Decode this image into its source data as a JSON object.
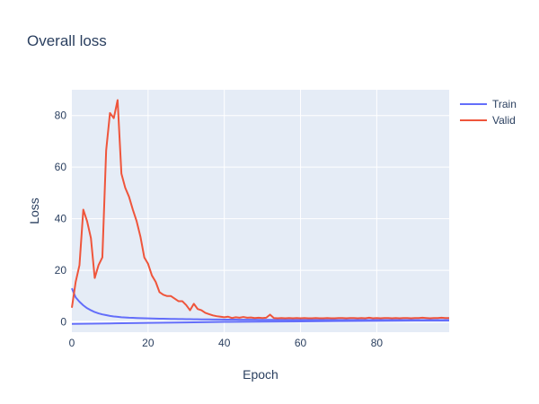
{
  "chart_data": {
    "type": "line",
    "title": "Overall loss",
    "xlabel": "Epoch",
    "ylabel": "Loss",
    "xlim": [
      0,
      99
    ],
    "ylim": [
      -4,
      90
    ],
    "x_ticks": [
      0,
      20,
      40,
      60,
      80
    ],
    "y_ticks": [
      0,
      20,
      40,
      60,
      80
    ],
    "grid": true,
    "legend_position": "top-right",
    "series": [
      {
        "name": "Train",
        "color": "#636efa",
        "x": [
          0,
          1,
          2,
          3,
          4,
          5,
          6,
          7,
          8,
          9,
          10,
          11,
          12,
          13,
          14,
          15,
          16,
          17,
          18,
          19,
          20,
          21,
          22,
          23,
          24,
          25,
          26,
          27,
          28,
          29,
          30,
          31,
          32,
          33,
          34,
          35,
          36,
          37,
          38,
          39,
          40,
          41,
          42,
          43,
          44,
          45,
          46,
          47,
          48,
          49,
          50,
          51,
          52,
          53,
          54,
          55,
          56,
          57,
          58,
          59,
          60,
          61,
          62,
          63,
          64,
          65,
          66,
          67,
          68,
          69,
          70,
          71,
          72,
          73,
          74,
          75,
          76,
          77,
          78,
          79,
          80,
          81,
          82,
          83,
          84,
          85,
          86,
          87,
          88,
          89,
          90,
          91,
          92,
          93,
          94,
          95,
          96,
          97,
          98,
          99
        ],
        "values": [
          13.0,
          9.5,
          7.8,
          6.4,
          5.3,
          4.5,
          3.8,
          3.3,
          2.9,
          2.6,
          2.3,
          2.1,
          1.95,
          1.8,
          1.7,
          1.6,
          1.55,
          1.5,
          1.45,
          1.4,
          1.35,
          1.3,
          1.27,
          1.24,
          1.2,
          1.17,
          1.15,
          1.12,
          1.1,
          1.08,
          1.05,
          1.03,
          1.01,
          1.0,
          0.98,
          0.96,
          0.95,
          0.93,
          0.92,
          0.9,
          0.89,
          0.88,
          0.87,
          0.86,
          0.85,
          0.84,
          0.83,
          0.82,
          0.81,
          0.8,
          0.8,
          0.79,
          0.79,
          0.78,
          0.78,
          0.77,
          0.77,
          0.76,
          0.76,
          0.75,
          0.75,
          0.75,
          0.74,
          0.74,
          0.74,
          0.73,
          0.73,
          0.73,
          0.72,
          0.72,
          0.72,
          0.72,
          0.71,
          0.71,
          0.71,
          0.71,
          0.7,
          0.7,
          0.7,
          0.7,
          0.7,
          0.7,
          0.69,
          0.69,
          0.69,
          0.69,
          0.69,
          0.69,
          0.69,
          0.68,
          0.68,
          0.68,
          0.68,
          0.68,
          0.68,
          0.68,
          0.68,
          0.68,
          0.68,
          0.68
        ]
      },
      {
        "name": "Train",
        "color": "#636efa",
        "x": [
          0,
          10,
          20,
          30,
          40,
          50,
          60,
          70,
          80,
          90,
          99
        ],
        "values": [
          -0.8,
          -0.6,
          -0.4,
          -0.2,
          0.0,
          0.1,
          0.2,
          0.3,
          0.4,
          0.5,
          0.5
        ]
      },
      {
        "name": "Valid",
        "color": "#ef553b",
        "x": [
          0,
          1,
          2,
          3,
          4,
          5,
          6,
          7,
          8,
          9,
          10,
          11,
          12,
          13,
          14,
          15,
          16,
          17,
          18,
          19,
          20,
          21,
          22,
          23,
          24,
          25,
          26,
          27,
          28,
          29,
          30,
          31,
          32,
          33,
          34,
          35,
          36,
          37,
          38,
          39,
          40,
          41,
          42,
          43,
          44,
          45,
          46,
          47,
          48,
          49,
          50,
          51,
          52,
          53,
          54,
          55,
          56,
          57,
          58,
          59,
          60,
          61,
          62,
          63,
          64,
          65,
          66,
          67,
          68,
          69,
          70,
          71,
          72,
          73,
          74,
          75,
          76,
          77,
          78,
          79,
          80,
          81,
          82,
          83,
          84,
          85,
          86,
          87,
          88,
          89,
          90,
          91,
          92,
          93,
          94,
          95,
          96,
          97,
          98,
          99
        ],
        "values": [
          5.5,
          15.5,
          22.0,
          43.5,
          39.0,
          32.5,
          17.0,
          22.0,
          25.0,
          66.5,
          81.0,
          79.0,
          86.0,
          57.5,
          52.0,
          48.5,
          43.5,
          39.0,
          33.0,
          25.0,
          22.5,
          18.0,
          15.5,
          11.5,
          10.5,
          10.0,
          10.0,
          9.0,
          8.0,
          8.0,
          6.5,
          4.5,
          7.0,
          5.0,
          4.5,
          3.5,
          3.0,
          2.5,
          2.2,
          2.0,
          1.8,
          2.0,
          1.5,
          1.8,
          1.6,
          1.9,
          1.6,
          1.7,
          1.5,
          1.6,
          1.5,
          1.6,
          2.8,
          1.5,
          1.4,
          1.5,
          1.4,
          1.5,
          1.4,
          1.5,
          1.4,
          1.5,
          1.4,
          1.4,
          1.5,
          1.4,
          1.4,
          1.5,
          1.4,
          1.4,
          1.5,
          1.5,
          1.4,
          1.5,
          1.5,
          1.4,
          1.5,
          1.4,
          1.6,
          1.4,
          1.5,
          1.4,
          1.5,
          1.5,
          1.4,
          1.5,
          1.4,
          1.5,
          1.5,
          1.4,
          1.5,
          1.5,
          1.6,
          1.5,
          1.4,
          1.5,
          1.5,
          1.6,
          1.5,
          1.5
        ]
      }
    ]
  }
}
